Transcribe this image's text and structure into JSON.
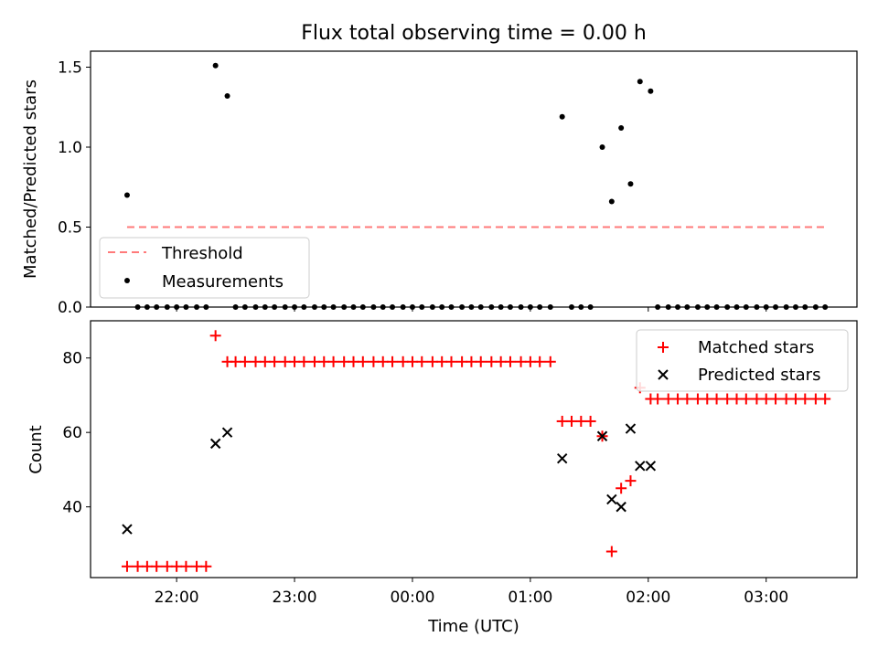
{
  "chart_data": [
    {
      "type": "scatter",
      "title": "Flux total observing time = 0.00 h",
      "ylabel": "Matched/Predicted stars",
      "ylim": [
        0,
        1.6
      ],
      "y_ticks": [
        "0.0",
        "0.5",
        "1.0",
        "1.5"
      ],
      "y_tick_values": [
        0,
        0.5,
        1.0,
        1.5
      ],
      "legend_position": "lower-left",
      "threshold": {
        "name": "Threshold",
        "value": 0.5,
        "x_start": 21.58,
        "x_end": 27.5,
        "color": "#ff7a7a",
        "style": "dashed"
      },
      "series": [
        {
          "name": "Measurements",
          "color": "#000000",
          "marker": "dot",
          "points": [
            [
              21.58,
              0.7
            ],
            [
              22.33,
              1.51
            ],
            [
              22.43,
              1.32
            ],
            [
              25.27,
              1.19
            ],
            [
              25.61,
              1.0
            ],
            [
              25.69,
              0.66
            ],
            [
              25.77,
              1.12
            ],
            [
              25.85,
              0.77
            ],
            [
              25.93,
              1.41
            ],
            [
              26.02,
              1.35
            ],
            [
              21.67,
              0
            ],
            [
              21.75,
              0
            ],
            [
              21.83,
              0
            ],
            [
              21.92,
              0
            ],
            [
              22.0,
              0
            ],
            [
              22.08,
              0
            ],
            [
              22.17,
              0
            ],
            [
              22.25,
              0
            ],
            [
              22.5,
              0
            ],
            [
              22.58,
              0
            ],
            [
              22.67,
              0
            ],
            [
              22.75,
              0
            ],
            [
              22.83,
              0
            ],
            [
              22.92,
              0
            ],
            [
              23.0,
              0
            ],
            [
              23.08,
              0
            ],
            [
              23.17,
              0
            ],
            [
              23.25,
              0
            ],
            [
              23.33,
              0
            ],
            [
              23.42,
              0
            ],
            [
              23.5,
              0
            ],
            [
              23.58,
              0
            ],
            [
              23.67,
              0
            ],
            [
              23.75,
              0
            ],
            [
              23.83,
              0
            ],
            [
              23.92,
              0
            ],
            [
              24.0,
              0
            ],
            [
              24.08,
              0
            ],
            [
              24.17,
              0
            ],
            [
              24.25,
              0
            ],
            [
              24.33,
              0
            ],
            [
              24.42,
              0
            ],
            [
              24.5,
              0
            ],
            [
              24.58,
              0
            ],
            [
              24.67,
              0
            ],
            [
              24.75,
              0
            ],
            [
              24.83,
              0
            ],
            [
              24.92,
              0
            ],
            [
              25.0,
              0
            ],
            [
              25.08,
              0
            ],
            [
              25.17,
              0
            ],
            [
              25.35,
              0
            ],
            [
              25.43,
              0
            ],
            [
              25.51,
              0
            ],
            [
              26.08,
              0
            ],
            [
              26.17,
              0
            ],
            [
              26.25,
              0
            ],
            [
              26.33,
              0
            ],
            [
              26.42,
              0
            ],
            [
              26.5,
              0
            ],
            [
              26.58,
              0
            ],
            [
              26.67,
              0
            ],
            [
              26.75,
              0
            ],
            [
              26.83,
              0
            ],
            [
              26.92,
              0
            ],
            [
              27.0,
              0
            ],
            [
              27.08,
              0
            ],
            [
              27.17,
              0
            ],
            [
              27.25,
              0
            ],
            [
              27.33,
              0
            ],
            [
              27.42,
              0
            ],
            [
              27.5,
              0
            ]
          ]
        }
      ]
    },
    {
      "type": "scatter",
      "xlabel": "Time (UTC)",
      "ylabel": "Count",
      "ylim": [
        21,
        90
      ],
      "y_ticks": [
        "40",
        "60",
        "80"
      ],
      "y_tick_values": [
        40,
        60,
        80
      ],
      "xlim": [
        21.27,
        27.77
      ],
      "x_ticks": [
        "22:00",
        "23:00",
        "00:00",
        "01:00",
        "02:00",
        "03:00"
      ],
      "x_tick_values": [
        22,
        23,
        24,
        25,
        26,
        27
      ],
      "legend_position": "top-right",
      "series": [
        {
          "name": "Matched stars",
          "color": "#ff0000",
          "marker": "plus",
          "points": [
            [
              21.58,
              24
            ],
            [
              21.67,
              24
            ],
            [
              21.75,
              24
            ],
            [
              21.83,
              24
            ],
            [
              21.92,
              24
            ],
            [
              22.0,
              24
            ],
            [
              22.08,
              24
            ],
            [
              22.17,
              24
            ],
            [
              22.25,
              24
            ],
            [
              22.33,
              86
            ],
            [
              22.43,
              79
            ],
            [
              22.5,
              79
            ],
            [
              22.58,
              79
            ],
            [
              22.67,
              79
            ],
            [
              22.75,
              79
            ],
            [
              22.83,
              79
            ],
            [
              22.92,
              79
            ],
            [
              23.0,
              79
            ],
            [
              23.08,
              79
            ],
            [
              23.17,
              79
            ],
            [
              23.25,
              79
            ],
            [
              23.33,
              79
            ],
            [
              23.42,
              79
            ],
            [
              23.5,
              79
            ],
            [
              23.58,
              79
            ],
            [
              23.67,
              79
            ],
            [
              23.75,
              79
            ],
            [
              23.83,
              79
            ],
            [
              23.92,
              79
            ],
            [
              24.0,
              79
            ],
            [
              24.08,
              79
            ],
            [
              24.17,
              79
            ],
            [
              24.25,
              79
            ],
            [
              24.33,
              79
            ],
            [
              24.42,
              79
            ],
            [
              24.5,
              79
            ],
            [
              24.58,
              79
            ],
            [
              24.67,
              79
            ],
            [
              24.75,
              79
            ],
            [
              24.83,
              79
            ],
            [
              24.92,
              79
            ],
            [
              25.0,
              79
            ],
            [
              25.08,
              79
            ],
            [
              25.17,
              79
            ],
            [
              25.27,
              63
            ],
            [
              25.35,
              63
            ],
            [
              25.43,
              63
            ],
            [
              25.51,
              63
            ],
            [
              25.61,
              59
            ],
            [
              25.69,
              28
            ],
            [
              25.77,
              45
            ],
            [
              25.85,
              47
            ],
            [
              25.93,
              72
            ],
            [
              26.02,
              69
            ],
            [
              26.08,
              69
            ],
            [
              26.17,
              69
            ],
            [
              26.25,
              69
            ],
            [
              26.33,
              69
            ],
            [
              26.42,
              69
            ],
            [
              26.5,
              69
            ],
            [
              26.58,
              69
            ],
            [
              26.67,
              69
            ],
            [
              26.75,
              69
            ],
            [
              26.83,
              69
            ],
            [
              26.92,
              69
            ],
            [
              27.0,
              69
            ],
            [
              27.08,
              69
            ],
            [
              27.17,
              69
            ],
            [
              27.25,
              69
            ],
            [
              27.33,
              69
            ],
            [
              27.42,
              69
            ],
            [
              27.5,
              69
            ]
          ]
        },
        {
          "name": "Predicted stars",
          "color": "#000000",
          "marker": "x",
          "points": [
            [
              21.58,
              34
            ],
            [
              22.33,
              57
            ],
            [
              22.43,
              60
            ],
            [
              25.27,
              53
            ],
            [
              25.61,
              59
            ],
            [
              25.69,
              42
            ],
            [
              25.77,
              40
            ],
            [
              25.85,
              61
            ],
            [
              25.93,
              51
            ],
            [
              26.02,
              51
            ]
          ]
        }
      ]
    }
  ]
}
